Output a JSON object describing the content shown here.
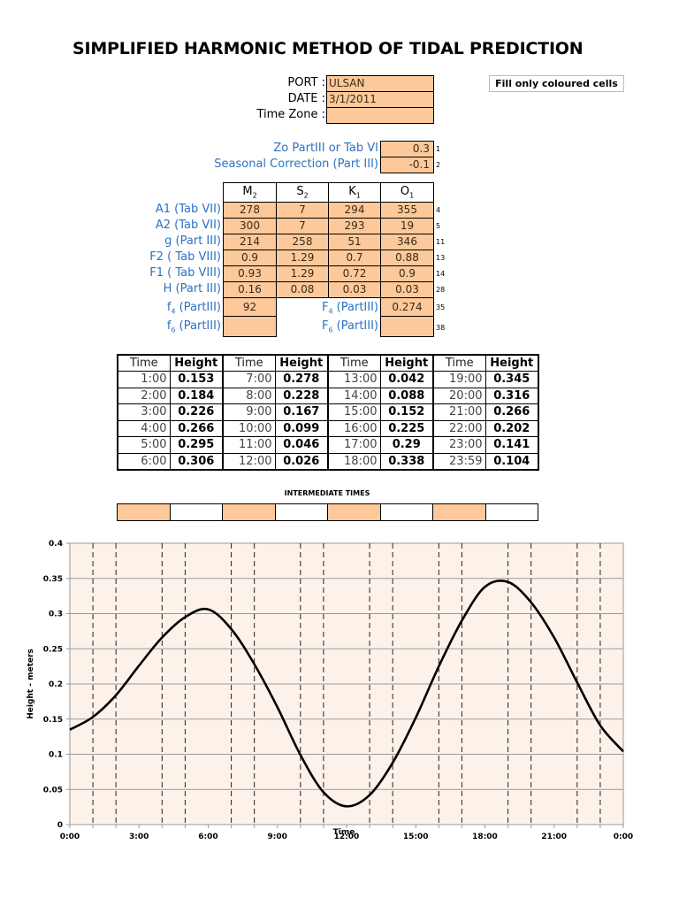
{
  "title": "SIMPLIFIED HARMONIC METHOD OF TIDAL PREDICTION",
  "header_fields": {
    "port_label": "PORT :",
    "port_value": "ULSAN",
    "date_label": "DATE :",
    "date_value": "3/1/2011",
    "timezone_label": "Time Zone :",
    "timezone_value": ""
  },
  "note": "Fill only coloured cells",
  "params": {
    "zo_label": "Zo PartIII or Tab VI",
    "zo_value": "0.3",
    "zo_row": "1",
    "seasonal_label": "Seasonal Correction (Part III)",
    "seasonal_value": "-0.1",
    "seasonal_row": "2"
  },
  "constituents": {
    "headers": [
      {
        "main": "M",
        "sub": "2"
      },
      {
        "main": "S",
        "sub": "2"
      },
      {
        "main": "K",
        "sub": "1"
      },
      {
        "main": "O",
        "sub": "1"
      }
    ],
    "rows": [
      {
        "label": "A1 (Tab VII)",
        "values": [
          "278",
          "7",
          "294",
          "355"
        ],
        "rownum": "4"
      },
      {
        "label": "A2 (Tab VII)",
        "values": [
          "300",
          "7",
          "293",
          "19"
        ],
        "rownum": "5"
      },
      {
        "label": "g (Part III)",
        "values": [
          "214",
          "258",
          "51",
          "346"
        ],
        "rownum": "11"
      },
      {
        "label": "F2 ( Tab VIII)",
        "values": [
          "0.9",
          "1.29",
          "0.7",
          "0.88"
        ],
        "rownum": "13"
      },
      {
        "label": "F1 ( Tab VIII)",
        "values": [
          "0.93",
          "1.29",
          "0.72",
          "0.9"
        ],
        "rownum": "14"
      },
      {
        "label": "H (Part III)",
        "values": [
          "0.16",
          "0.08",
          "0.03",
          "0.03"
        ],
        "rownum": "28"
      }
    ],
    "f4_label": "f",
    "f4_sub": "4",
    "f4_suffix": " (PartIII)",
    "f4_value": "92",
    "F4_label": "F",
    "F4_sub": "4",
    "F4_suffix": " (PartIII)",
    "F4_value": "0.274",
    "F4_row": "35",
    "f6_label": "f",
    "f6_sub": "6",
    "f6_suffix": " (PartIII)",
    "f6_value": "",
    "F6_label": "F",
    "F6_sub": "6",
    "F6_suffix": " (PartIII)",
    "F6_value": "",
    "F6_row": "38"
  },
  "heights_table": {
    "time_header": "Time",
    "height_header": "Height",
    "rows": [
      [
        [
          "1:00",
          "0.153"
        ],
        [
          "7:00",
          "0.278"
        ],
        [
          "13:00",
          "0.042"
        ],
        [
          "19:00",
          "0.345"
        ]
      ],
      [
        [
          "2:00",
          "0.184"
        ],
        [
          "8:00",
          "0.228"
        ],
        [
          "14:00",
          "0.088"
        ],
        [
          "20:00",
          "0.316"
        ]
      ],
      [
        [
          "3:00",
          "0.226"
        ],
        [
          "9:00",
          "0.167"
        ],
        [
          "15:00",
          "0.152"
        ],
        [
          "21:00",
          "0.266"
        ]
      ],
      [
        [
          "4:00",
          "0.266"
        ],
        [
          "10:00",
          "0.099"
        ],
        [
          "16:00",
          "0.225"
        ],
        [
          "22:00",
          "0.202"
        ]
      ],
      [
        [
          "5:00",
          "0.295"
        ],
        [
          "11:00",
          "0.046"
        ],
        [
          "17:00",
          "0.29"
        ],
        [
          "23:00",
          "0.141"
        ]
      ],
      [
        [
          "6:00",
          "0.306"
        ],
        [
          "12:00",
          "0.026"
        ],
        [
          "18:00",
          "0.338"
        ],
        [
          "23:59",
          "0.104"
        ]
      ]
    ]
  },
  "intermediate": {
    "title": "INTERMEDIATE TIMES",
    "cells": [
      "",
      "",
      "",
      "",
      "",
      "",
      "",
      ""
    ]
  },
  "colors": {
    "input_fill": "#fdc99a",
    "label_blue": "#2b72c4",
    "plot_bg": "#fdf2ea"
  },
  "chart_data": {
    "type": "line",
    "title": "",
    "xlabel": "Time",
    "ylabel": "Height - meters",
    "x": [
      "0:00",
      "1:00",
      "2:00",
      "3:00",
      "4:00",
      "5:00",
      "6:00",
      "7:00",
      "8:00",
      "9:00",
      "10:00",
      "11:00",
      "12:00",
      "13:00",
      "14:00",
      "15:00",
      "16:00",
      "17:00",
      "18:00",
      "19:00",
      "20:00",
      "21:00",
      "22:00",
      "23:00",
      "23:59"
    ],
    "series": [
      {
        "name": "Height",
        "values": [
          0.135,
          0.153,
          0.184,
          0.226,
          0.266,
          0.295,
          0.306,
          0.278,
          0.228,
          0.167,
          0.099,
          0.046,
          0.026,
          0.042,
          0.088,
          0.152,
          0.225,
          0.29,
          0.338,
          0.345,
          0.316,
          0.266,
          0.202,
          0.141,
          0.104
        ]
      }
    ],
    "x_tick_labels": [
      "0:00",
      "3:00",
      "6:00",
      "9:00",
      "12:00",
      "15:00",
      "18:00",
      "21:00",
      "0:00"
    ],
    "y_tick_labels": [
      "0",
      "0.05",
      "0.1",
      "0.15",
      "0.2",
      "0.25",
      "0.3",
      "0.35",
      "0.4"
    ],
    "ylim": [
      0,
      0.4
    ],
    "xlim_hours": [
      0,
      24
    ],
    "grid": "horizontal solid every 0.05; vertical dashed every hour except multiples of 3",
    "legend": "none"
  }
}
